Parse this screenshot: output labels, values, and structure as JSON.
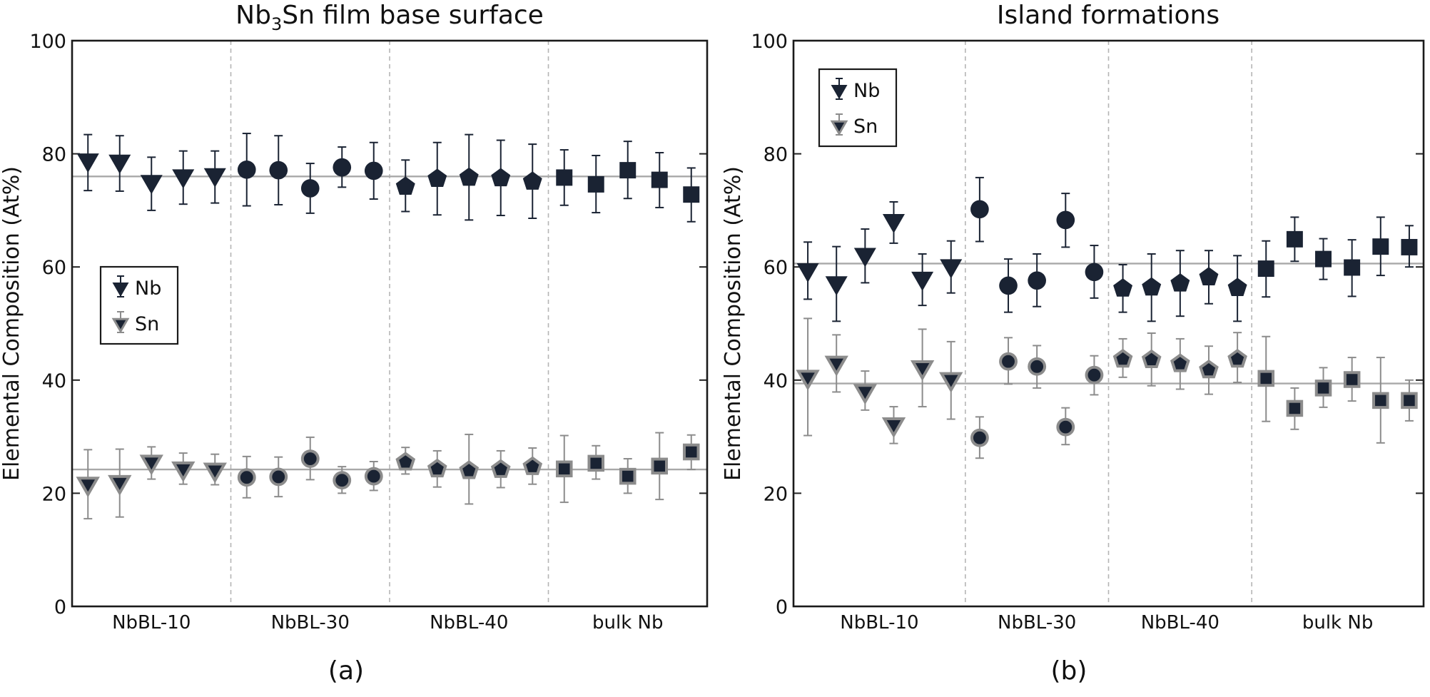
{
  "chart_data": [
    {
      "type": "scatter",
      "title_parts": [
        "Nb",
        "3",
        "Sn film base surface"
      ],
      "ylabel": "Elemental Composition (At%)",
      "xlabel": "",
      "ylim": [
        0,
        100
      ],
      "yticks": [
        0,
        20,
        40,
        60,
        80,
        100
      ],
      "panel_label": "(a)",
      "legend_position": "middle-left",
      "legend": [
        {
          "label": "Nb",
          "marker": "triangle-down",
          "color": "#1a2333"
        },
        {
          "label": "Sn",
          "marker": "triangle-down",
          "color": "#1a2333",
          "edge": "#8c8c8c"
        }
      ],
      "reference_lines": [
        76,
        24.2
      ],
      "groups": [
        {
          "label": "NbBL-10",
          "marker": "triangle-down",
          "count": 5
        },
        {
          "label": "NbBL-30",
          "marker": "circle",
          "count": 5
        },
        {
          "label": "NbBL-40",
          "marker": "pentagon",
          "count": 5
        },
        {
          "label": "bulk Nb",
          "marker": "square",
          "count": 5
        }
      ],
      "series": [
        {
          "name": "Nb",
          "values": [
            78.7,
            78.5,
            74.9,
            75.9,
            76.1,
            77.2,
            77.1,
            73.9,
            77.6,
            77.0,
            74.2,
            75.6,
            75.8,
            75.7,
            75.1,
            75.8,
            74.6,
            77.1,
            75.4,
            72.8
          ],
          "lower": [
            73.5,
            73.4,
            70.0,
            71.1,
            71.3,
            70.8,
            71.0,
            69.5,
            74.1,
            72.0,
            69.8,
            69.2,
            68.3,
            69.1,
            68.6,
            70.9,
            69.6,
            72.1,
            70.5,
            68.0
          ],
          "upper": [
            83.4,
            83.2,
            79.4,
            80.5,
            80.5,
            83.6,
            83.2,
            78.3,
            81.2,
            82.0,
            78.9,
            82.0,
            83.4,
            82.4,
            81.7,
            80.7,
            79.7,
            82.2,
            80.2,
            77.5
          ]
        },
        {
          "name": "Sn",
          "values": [
            21.5,
            21.8,
            25.4,
            24.2,
            24.0,
            22.8,
            22.9,
            26.1,
            22.3,
            23.0,
            25.5,
            24.3,
            24.0,
            24.2,
            24.7,
            24.3,
            25.3,
            23.0,
            24.8,
            27.3
          ],
          "lower": [
            15.5,
            15.8,
            22.5,
            21.6,
            21.5,
            19.2,
            19.4,
            22.4,
            20.0,
            20.5,
            23.4,
            21.1,
            18.1,
            21.0,
            21.6,
            18.4,
            22.5,
            20.0,
            18.9,
            24.2
          ],
          "upper": [
            27.7,
            27.8,
            28.2,
            27.1,
            26.9,
            26.5,
            26.4,
            29.9,
            24.7,
            25.6,
            28.1,
            27.5,
            30.4,
            27.5,
            28.0,
            30.2,
            28.4,
            26.1,
            30.7,
            30.3
          ]
        }
      ]
    },
    {
      "type": "scatter",
      "title_parts": [
        "Island formations"
      ],
      "ylabel": "Elemental Composition (At%)",
      "xlabel": "",
      "ylim": [
        0,
        100
      ],
      "yticks": [
        0,
        20,
        40,
        60,
        80,
        100
      ],
      "panel_label": "(b)",
      "legend_position": "top-left",
      "legend": [
        {
          "label": "Nb",
          "marker": "triangle-down",
          "color": "#1a2333"
        },
        {
          "label": "Sn",
          "marker": "triangle-down",
          "color": "#1a2333",
          "edge": "#8c8c8c"
        }
      ],
      "reference_lines": [
        60.6,
        39.4
      ],
      "groups": [
        {
          "label": "NbBL-10",
          "marker": "triangle-down",
          "count": 6
        },
        {
          "label": "NbBL-30",
          "marker": "circle",
          "count": 5
        },
        {
          "label": "NbBL-40",
          "marker": "pentagon",
          "count": 5
        },
        {
          "label": "bulk Nb",
          "marker": "square",
          "count": 6
        }
      ],
      "series": [
        {
          "name": "Nb",
          "values": [
            59.3,
            57.0,
            62.0,
            68.0,
            57.8,
            60.0,
            70.2,
            56.7,
            57.6,
            68.3,
            59.1,
            56.2,
            56.4,
            57.1,
            58.2,
            56.3,
            59.7,
            64.9,
            61.4,
            59.9,
            63.6,
            63.5
          ],
          "lower": [
            54.3,
            50.4,
            57.2,
            64.2,
            53.2,
            55.4,
            64.5,
            52.0,
            53.0,
            63.5,
            54.5,
            52.0,
            50.4,
            51.3,
            53.5,
            50.4,
            54.7,
            61.0,
            57.8,
            54.8,
            58.5,
            60.0
          ],
          "upper": [
            64.4,
            63.6,
            66.7,
            71.5,
            62.3,
            64.6,
            75.8,
            61.4,
            62.3,
            73.0,
            63.8,
            60.4,
            62.3,
            62.9,
            62.9,
            62.0,
            64.6,
            68.8,
            65.0,
            64.8,
            68.8,
            67.3
          ]
        },
        {
          "name": "Sn",
          "values": [
            40.4,
            42.9,
            37.9,
            32.0,
            42.1,
            40.0,
            29.8,
            43.3,
            42.4,
            31.7,
            40.9,
            43.7,
            43.6,
            42.9,
            41.8,
            43.7,
            40.3,
            35.0,
            38.6,
            40.1,
            36.4,
            36.4
          ],
          "lower": [
            30.2,
            37.9,
            34.7,
            28.8,
            35.3,
            33.1,
            26.2,
            39.3,
            38.6,
            28.6,
            37.4,
            40.5,
            39.0,
            38.4,
            37.5,
            39.6,
            32.7,
            31.3,
            35.2,
            36.3,
            28.9,
            32.8
          ],
          "upper": [
            50.9,
            48.0,
            41.6,
            35.3,
            49.0,
            46.8,
            33.5,
            47.5,
            46.1,
            35.1,
            44.3,
            47.3,
            48.3,
            47.3,
            46.0,
            48.4,
            47.7,
            38.6,
            42.2,
            44.0,
            44.0,
            40.0
          ]
        }
      ]
    }
  ]
}
